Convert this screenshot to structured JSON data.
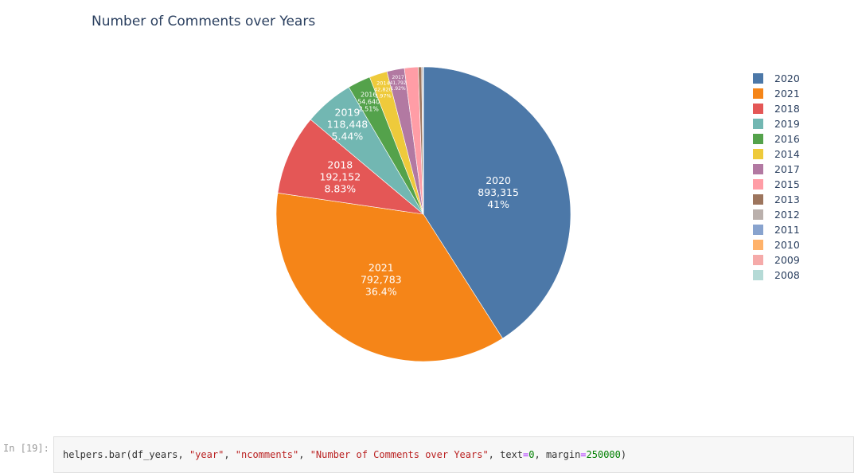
{
  "chart_data": {
    "type": "pie",
    "title": "Number of Comments over Years",
    "slices": [
      {
        "label": "2020",
        "value": 893315,
        "value_text": "893,315",
        "percent_text": "41%",
        "color": "#4c78a8"
      },
      {
        "label": "2021",
        "value": 792783,
        "value_text": "792,783",
        "percent_text": "36.4%",
        "color": "#f58518"
      },
      {
        "label": "2018",
        "value": 192152,
        "value_text": "192,152",
        "percent_text": "8.83%",
        "color": "#e45756"
      },
      {
        "label": "2019",
        "value": 118448,
        "value_text": "118,448",
        "percent_text": "5.44%",
        "color": "#72b7b2"
      },
      {
        "label": "2016",
        "value": 54640,
        "value_text": "54,640",
        "percent_text": "2.51%",
        "color": "#54a24b"
      },
      {
        "label": "2014",
        "value": 42820,
        "value_text": "42,820",
        "percent_text": "1.97%",
        "color": "#eeca3b"
      },
      {
        "label": "2017",
        "value": 41792,
        "value_text": "41,792",
        "percent_text": "1.92%",
        "color": "#b279a2"
      },
      {
        "label": "2015",
        "value": 33000,
        "value_text": "",
        "percent_text": "",
        "color": "#ff9da6"
      },
      {
        "label": "2013",
        "value": 8000,
        "value_text": "",
        "percent_text": "",
        "color": "#9d755d"
      },
      {
        "label": "2012",
        "value": 3000,
        "value_text": "",
        "percent_text": "",
        "color": "#bab0ac"
      },
      {
        "label": "2011",
        "value": 800,
        "value_text": "",
        "percent_text": "",
        "color": "#88a3ce"
      },
      {
        "label": "2010",
        "value": 300,
        "value_text": "",
        "percent_text": "",
        "color": "#ffb26a"
      },
      {
        "label": "2009",
        "value": 100,
        "value_text": "",
        "percent_text": "",
        "color": "#f5aaa9"
      },
      {
        "label": "2008",
        "value": 50,
        "value_text": "",
        "percent_text": "",
        "color": "#b5dad6"
      }
    ],
    "legend_position": "right",
    "sort_direction": "clockwise"
  },
  "cell": {
    "prompt": "In [19]:",
    "code": {
      "prefix": "helpers.bar(df_years, ",
      "arg1": "\"year\"",
      "sep1": ", ",
      "arg2": "\"ncomments\"",
      "sep2": ", ",
      "arg3": "\"Number of Comments over Years\"",
      "sep3": ", text",
      "eq1": "=",
      "num1": "0",
      "sep4": ", margin",
      "eq2": "=",
      "num2": "250000",
      "suffix": ")"
    }
  }
}
